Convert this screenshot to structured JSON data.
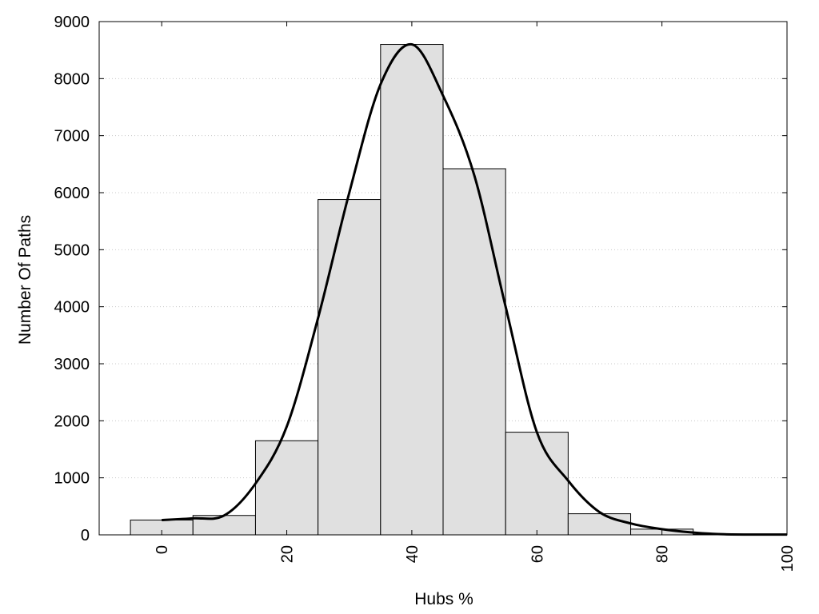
{
  "chart_data": {
    "type": "bar",
    "title": "",
    "xlabel": "Hubs %",
    "ylabel": "Number Of Paths",
    "xlim": [
      -10,
      100
    ],
    "ylim": [
      0,
      9000
    ],
    "x_ticks": [
      0,
      20,
      40,
      60,
      80,
      100
    ],
    "y_ticks": [
      0,
      1000,
      2000,
      3000,
      4000,
      5000,
      6000,
      7000,
      8000,
      9000
    ],
    "grid": "horizontal dotted",
    "bin_width": 10,
    "bins": [
      {
        "center": 0,
        "value": 260
      },
      {
        "center": 10,
        "value": 340
      },
      {
        "center": 20,
        "value": 1650
      },
      {
        "center": 30,
        "value": 5880
      },
      {
        "center": 40,
        "value": 8600
      },
      {
        "center": 50,
        "value": 6420
      },
      {
        "center": 60,
        "value": 1800
      },
      {
        "center": 70,
        "value": 370
      },
      {
        "center": 80,
        "value": 100
      },
      {
        "center": 90,
        "value": 10
      }
    ],
    "curve": {
      "x": [
        0,
        5,
        10,
        15,
        20,
        25,
        30,
        35,
        40,
        45,
        50,
        55,
        60,
        65,
        70,
        75,
        80,
        85,
        90,
        95,
        100
      ],
      "y": [
        260,
        290,
        340,
        900,
        1900,
        3800,
        6000,
        7900,
        8600,
        7700,
        6300,
        4000,
        1800,
        950,
        400,
        200,
        100,
        40,
        10,
        5,
        5
      ]
    },
    "colors": {
      "bar_fill": "#e0e0e0",
      "bar_stroke": "#000000",
      "curve": "#000000",
      "grid": "#c8c8c8"
    }
  }
}
